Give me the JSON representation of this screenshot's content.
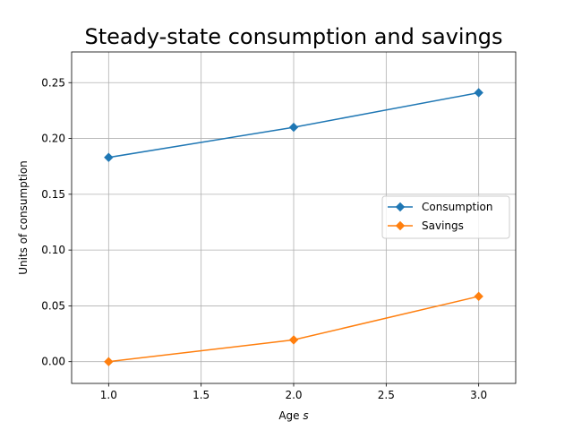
{
  "chart_data": {
    "type": "line",
    "title": "Steady-state consumption and savings",
    "xlabel_prefix": "Age ",
    "xlabel_var": "s",
    "ylabel": "Units of consumption",
    "x": [
      1.0,
      2.0,
      3.0
    ],
    "xlim": [
      0.8,
      3.2
    ],
    "ylim": [
      -0.0195,
      0.2775
    ],
    "xticks": [
      1.0,
      1.5,
      2.0,
      2.5,
      3.0
    ],
    "xtick_labels": [
      "1.0",
      "1.5",
      "2.0",
      "2.5",
      "3.0"
    ],
    "yticks": [
      0.0,
      0.05,
      0.1,
      0.15,
      0.2,
      0.25
    ],
    "ytick_labels": [
      "0.00",
      "0.05",
      "0.10",
      "0.15",
      "0.20",
      "0.25"
    ],
    "grid": true,
    "legend_position": "center-right",
    "series": [
      {
        "name": "Consumption",
        "color": "#1f77b4",
        "marker": "diamond",
        "values": [
          0.183,
          0.21,
          0.241
        ]
      },
      {
        "name": "Savings",
        "color": "#ff7f0e",
        "marker": "diamond",
        "values": [
          0.0,
          0.0195,
          0.0585
        ]
      }
    ]
  }
}
